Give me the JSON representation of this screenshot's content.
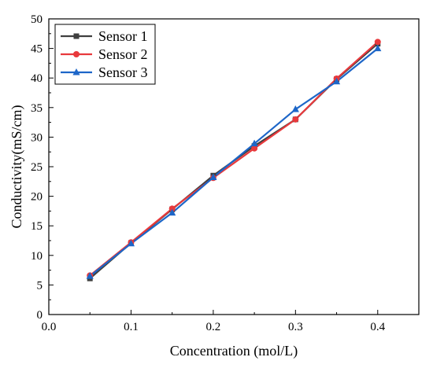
{
  "chart_data": {
    "type": "line",
    "xlabel": "Concentration (mol/L)",
    "ylabel": "Conductivity(mS/cm)",
    "xlim": [
      0.0,
      0.45
    ],
    "ylim": [
      0,
      50
    ],
    "xticks": [
      "0.0",
      "0.1",
      "0.2",
      "0.3",
      "0.4"
    ],
    "yticks": [
      "0",
      "5",
      "10",
      "15",
      "20",
      "25",
      "30",
      "35",
      "40",
      "45",
      "50"
    ],
    "grid": false,
    "legend_position": "top-left",
    "x": [
      0.05,
      0.1,
      0.15,
      0.2,
      0.25,
      0.3,
      0.35,
      0.4
    ],
    "series": [
      {
        "name": "Sensor 1",
        "color": "#3f3f3f",
        "marker": "square",
        "values": [
          6.1,
          12.1,
          17.8,
          23.5,
          28.5,
          33.0,
          39.8,
          45.8
        ]
      },
      {
        "name": "Sensor 2",
        "color": "#e8393c",
        "marker": "circle",
        "values": [
          6.6,
          12.2,
          17.9,
          23.1,
          28.1,
          33.0,
          39.9,
          46.1
        ]
      },
      {
        "name": "Sensor 3",
        "color": "#1d66c8",
        "marker": "triangle",
        "values": [
          6.5,
          12.0,
          17.2,
          23.2,
          28.9,
          34.7,
          39.4,
          45.0
        ]
      }
    ]
  }
}
